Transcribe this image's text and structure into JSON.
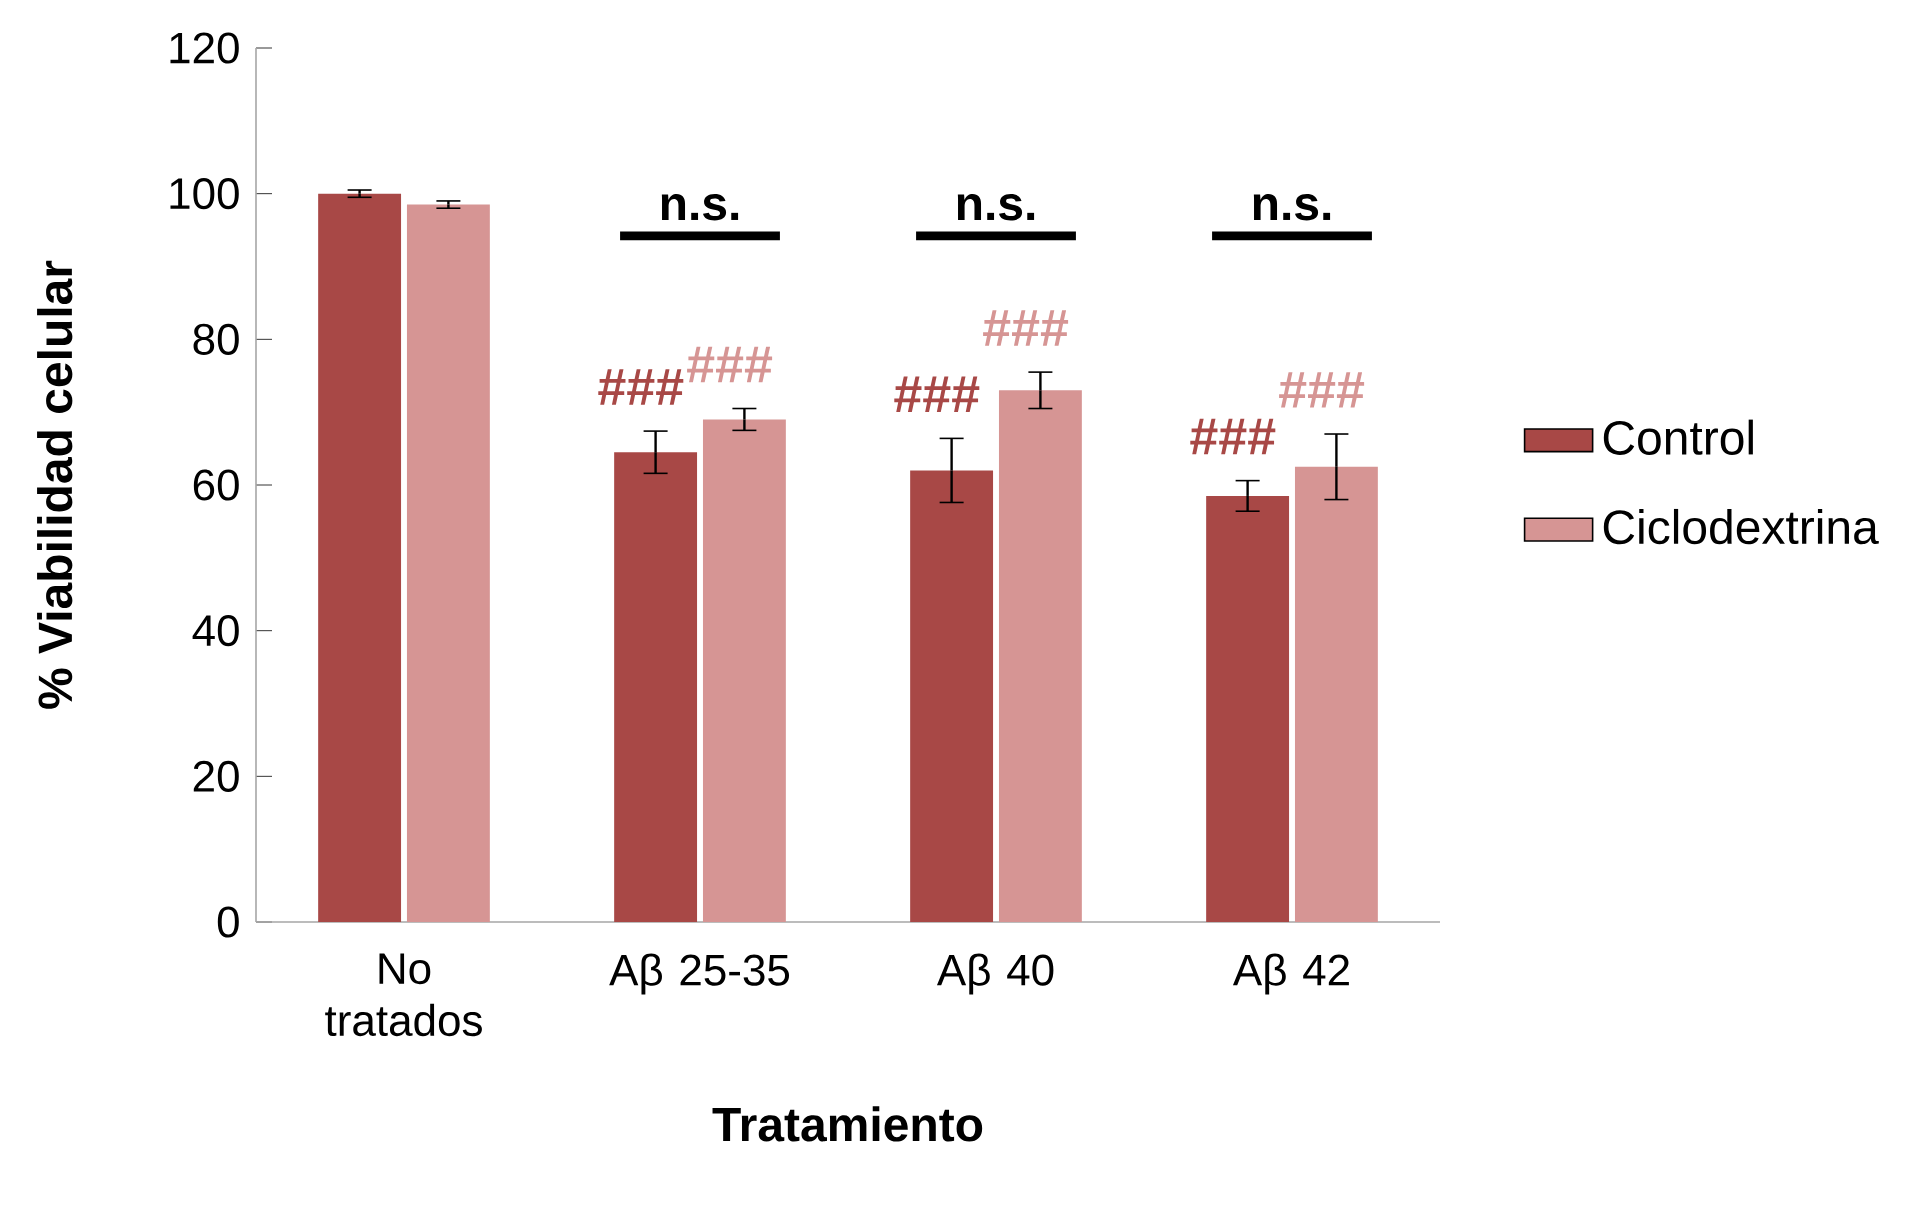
{
  "chart_data": {
    "type": "bar",
    "xlabel": "Tratamiento",
    "ylabel": "% Viabilidad celular",
    "categories": [
      "No tratados",
      "Aβ 25-35",
      "Aβ 40",
      "Aβ 42"
    ],
    "series": [
      {
        "name": "Control",
        "color": "#a84846",
        "values": [
          100,
          64.5,
          62,
          58.5
        ],
        "errors": [
          0.5,
          2.9,
          4.4,
          2.1
        ],
        "value_labels": [
          null,
          "###",
          "###",
          "###"
        ]
      },
      {
        "name": "Ciclodextrina",
        "color": "#d69594",
        "values": [
          98.5,
          69,
          73,
          62.5
        ],
        "errors": [
          0.5,
          1.5,
          2.5,
          4.5
        ],
        "value_labels": [
          null,
          "###",
          "###",
          "###"
        ]
      }
    ],
    "annotations": [
      "n.s.",
      "n.s.",
      "n.s."
    ],
    "ylim": [
      0,
      120
    ],
    "yticks": [
      0,
      20,
      40,
      60,
      80,
      100,
      120
    ],
    "grid": false,
    "legend": "right"
  }
}
